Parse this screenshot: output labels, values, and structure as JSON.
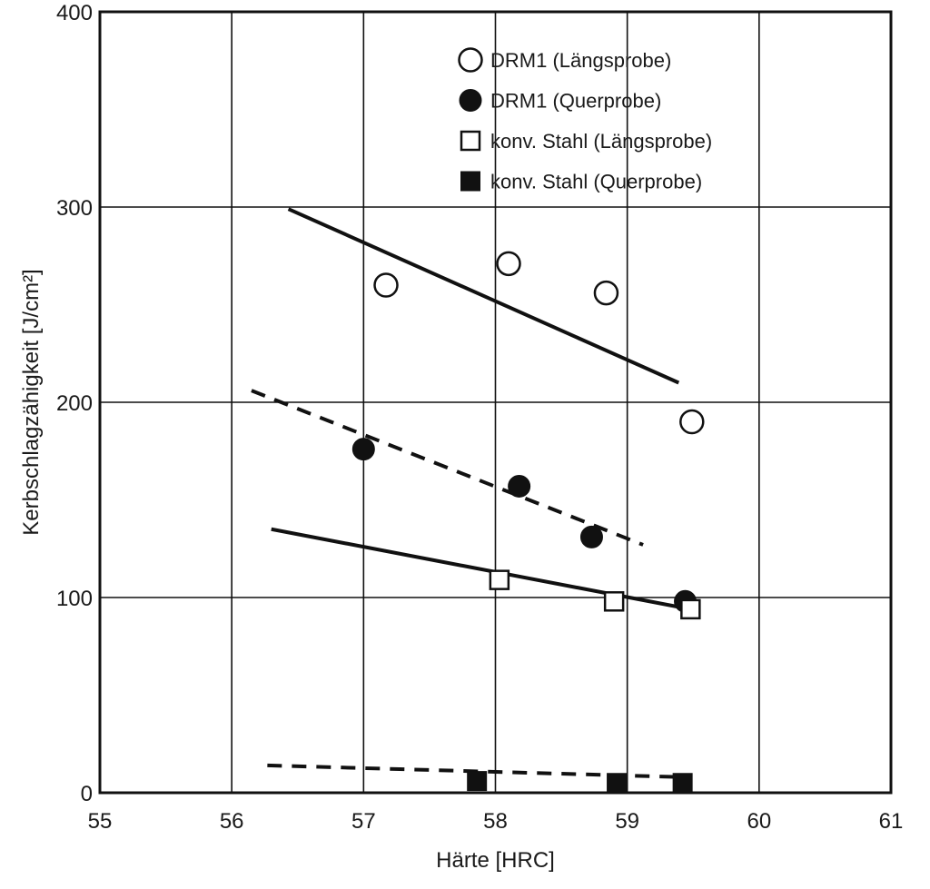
{
  "chart_data": {
    "type": "scatter",
    "title": "",
    "xlabel": "Härte [HRC]",
    "ylabel": "Kerbschlagzähigkeit [J/cm²]",
    "xlim": [
      55,
      61
    ],
    "ylim": [
      0,
      400
    ],
    "xticks": [
      "55",
      "56",
      "57",
      "58",
      "59",
      "60",
      "61"
    ],
    "yticks": [
      "0",
      "100",
      "200",
      "300",
      "400"
    ],
    "grid": true,
    "legend_position": "top-right",
    "series": [
      {
        "name": "DRM1 (Längsprobe)",
        "marker": "circle-open",
        "color": "#111111",
        "points": [
          [
            57.17,
            260
          ],
          [
            58.1,
            271
          ],
          [
            58.84,
            256
          ],
          [
            59.49,
            190
          ]
        ],
        "trend": {
          "style": "solid",
          "x": [
            56.43,
            59.39
          ],
          "y": [
            299,
            210
          ]
        }
      },
      {
        "name": "DRM1 (Querprobe)",
        "marker": "circle-filled",
        "color": "#111111",
        "points": [
          [
            57.0,
            176
          ],
          [
            58.18,
            157
          ],
          [
            58.73,
            131
          ],
          [
            59.44,
            98
          ]
        ],
        "trend": {
          "style": "dashed",
          "x": [
            56.15,
            59.12
          ],
          "y": [
            206,
            127
          ]
        }
      },
      {
        "name": "konv. Stahl (Längsprobe)",
        "marker": "square-open",
        "color": "#111111",
        "points": [
          [
            58.03,
            109
          ],
          [
            58.9,
            98
          ],
          [
            59.48,
            94
          ]
        ],
        "trend": {
          "style": "solid",
          "x": [
            56.3,
            59.48
          ],
          "y": [
            135,
            94
          ]
        }
      },
      {
        "name": "konv. Stahl (Querprobe)",
        "marker": "square-filled",
        "color": "#111111",
        "points": [
          [
            57.86,
            6
          ],
          [
            58.92,
            5
          ],
          [
            59.42,
            5
          ]
        ],
        "trend": {
          "style": "dashed",
          "x": [
            56.27,
            59.42
          ],
          "y": [
            14,
            8
          ]
        }
      }
    ]
  }
}
